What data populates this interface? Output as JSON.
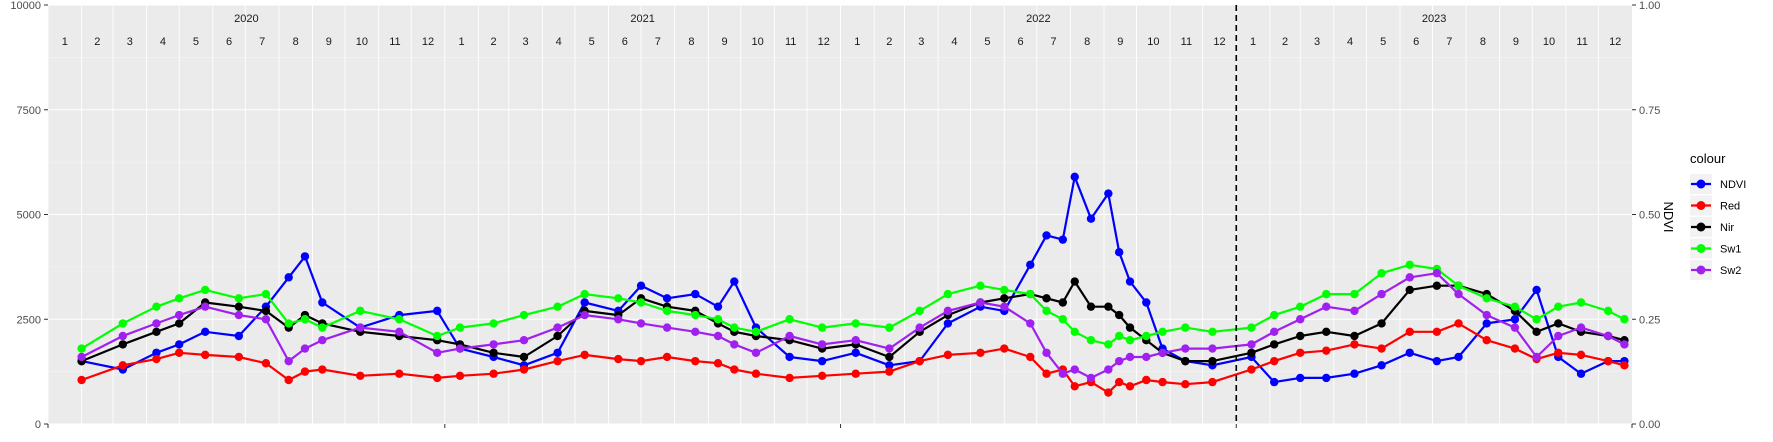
{
  "chart_data": {
    "type": "line",
    "x_axis": {
      "type": "date",
      "range": [
        "2020-01-01",
        "2024-01-01"
      ],
      "facet_labels": [
        "2020",
        "2021",
        "2022",
        "2023"
      ],
      "month_labels": [
        "1",
        "2",
        "3",
        "4",
        "5",
        "6",
        "7",
        "8",
        "9",
        "10",
        "11",
        "12"
      ]
    },
    "y_left": {
      "range": [
        0,
        10000
      ],
      "ticks": [
        0,
        2500,
        5000,
        7500,
        10000
      ],
      "labels": [
        "0",
        "2500",
        "5000",
        "7500",
        "10000"
      ]
    },
    "y_right": {
      "title": "NDVI",
      "range": [
        0,
        1
      ],
      "ticks": [
        0,
        0.25,
        0.5,
        0.75,
        1.0
      ],
      "labels": [
        "0.00",
        "0.25",
        "0.50",
        "0.75",
        "1.00"
      ]
    },
    "vline": {
      "x": "2023-01-01",
      "style": "dashed",
      "color": "#000000"
    },
    "grid": true,
    "panel_background": "#ebebeb",
    "legend": {
      "title": "colour",
      "position": "right"
    },
    "series": [
      {
        "name": "NDVI",
        "color": "#0000ff",
        "x": [
          "2020-02-01",
          "2020-03-10",
          "2020-04-10",
          "2020-05-01",
          "2020-05-25",
          "2020-06-25",
          "2020-07-20",
          "2020-08-10",
          "2020-08-25",
          "2020-09-10",
          "2020-10-15",
          "2020-11-20",
          "2020-12-25",
          "2021-01-15",
          "2021-02-15",
          "2021-03-15",
          "2021-04-15",
          "2021-05-10",
          "2021-06-10",
          "2021-07-01",
          "2021-07-25",
          "2021-08-20",
          "2021-09-10",
          "2021-09-25",
          "2021-10-15",
          "2021-11-15",
          "2021-12-15",
          "2022-01-15",
          "2022-02-15",
          "2022-03-15",
          "2022-04-10",
          "2022-05-10",
          "2022-06-01",
          "2022-06-25",
          "2022-07-10",
          "2022-07-25",
          "2022-08-05",
          "2022-08-20",
          "2022-09-05",
          "2022-09-15",
          "2022-09-25",
          "2022-10-10",
          "2022-10-25",
          "2022-11-15",
          "2022-12-10",
          "2023-01-15",
          "2023-02-05",
          "2023-03-01",
          "2023-03-25",
          "2023-04-20",
          "2023-05-15",
          "2023-06-10",
          "2023-07-05",
          "2023-07-25",
          "2023-08-20",
          "2023-09-15",
          "2023-10-05",
          "2023-10-25",
          "2023-11-15",
          "2023-12-10",
          "2023-12-25"
        ],
        "values": [
          0.15,
          0.13,
          0.17,
          0.19,
          0.22,
          0.21,
          0.28,
          0.35,
          0.4,
          0.29,
          0.23,
          0.26,
          0.27,
          0.18,
          0.16,
          0.14,
          0.17,
          0.29,
          0.27,
          0.33,
          0.3,
          0.31,
          0.28,
          0.34,
          0.23,
          0.16,
          0.15,
          0.17,
          0.14,
          0.15,
          0.24,
          0.28,
          0.27,
          0.38,
          0.45,
          0.44,
          0.59,
          0.49,
          0.55,
          0.41,
          0.34,
          0.29,
          0.18,
          0.15,
          0.14,
          0.16,
          0.1,
          0.11,
          0.11,
          0.12,
          0.14,
          0.17,
          0.15,
          0.16,
          0.24,
          0.25,
          0.32,
          0.16,
          0.12,
          0.15,
          0.15
        ]
      },
      {
        "name": "Red",
        "color": "#ff0000",
        "x": [
          "2020-02-01",
          "2020-03-10",
          "2020-04-10",
          "2020-05-01",
          "2020-05-25",
          "2020-06-25",
          "2020-07-20",
          "2020-08-10",
          "2020-08-25",
          "2020-09-10",
          "2020-10-15",
          "2020-11-20",
          "2020-12-25",
          "2021-01-15",
          "2021-02-15",
          "2021-03-15",
          "2021-04-15",
          "2021-05-10",
          "2021-06-10",
          "2021-07-01",
          "2021-07-25",
          "2021-08-20",
          "2021-09-10",
          "2021-09-25",
          "2021-10-15",
          "2021-11-15",
          "2021-12-15",
          "2022-01-15",
          "2022-02-15",
          "2022-03-15",
          "2022-04-10",
          "2022-05-10",
          "2022-06-01",
          "2022-06-25",
          "2022-07-10",
          "2022-07-25",
          "2022-08-05",
          "2022-08-20",
          "2022-09-05",
          "2022-09-15",
          "2022-09-25",
          "2022-10-10",
          "2022-10-25",
          "2022-11-15",
          "2022-12-10",
          "2023-01-15",
          "2023-02-05",
          "2023-03-01",
          "2023-03-25",
          "2023-04-20",
          "2023-05-15",
          "2023-06-10",
          "2023-07-05",
          "2023-07-25",
          "2023-08-20",
          "2023-09-15",
          "2023-10-05",
          "2023-10-25",
          "2023-11-15",
          "2023-12-10",
          "2023-12-25"
        ],
        "values": [
          1050,
          1400,
          1550,
          1700,
          1650,
          1600,
          1450,
          1050,
          1250,
          1300,
          1150,
          1200,
          1100,
          1150,
          1200,
          1300,
          1500,
          1650,
          1550,
          1500,
          1600,
          1500,
          1450,
          1300,
          1200,
          1100,
          1150,
          1200,
          1250,
          1500,
          1650,
          1700,
          1800,
          1600,
          1200,
          1300,
          900,
          1000,
          750,
          1000,
          900,
          1050,
          1000,
          950,
          1000,
          1300,
          1500,
          1700,
          1750,
          1900,
          1800,
          2200,
          2200,
          2400,
          2000,
          1800,
          1550,
          1700,
          1650,
          1500,
          1400
        ]
      },
      {
        "name": "Nir",
        "color": "#000000",
        "x": [
          "2020-02-01",
          "2020-03-10",
          "2020-04-10",
          "2020-05-01",
          "2020-05-25",
          "2020-06-25",
          "2020-07-20",
          "2020-08-10",
          "2020-08-25",
          "2020-09-10",
          "2020-10-15",
          "2020-11-20",
          "2020-12-25",
          "2021-01-15",
          "2021-02-15",
          "2021-03-15",
          "2021-04-15",
          "2021-05-10",
          "2021-06-10",
          "2021-07-01",
          "2021-07-25",
          "2021-08-20",
          "2021-09-10",
          "2021-09-25",
          "2021-10-15",
          "2021-11-15",
          "2021-12-15",
          "2022-01-15",
          "2022-02-15",
          "2022-03-15",
          "2022-04-10",
          "2022-05-10",
          "2022-06-01",
          "2022-06-25",
          "2022-07-10",
          "2022-07-25",
          "2022-08-05",
          "2022-08-20",
          "2022-09-05",
          "2022-09-15",
          "2022-09-25",
          "2022-10-10",
          "2022-10-25",
          "2022-11-15",
          "2022-12-10",
          "2023-01-15",
          "2023-02-05",
          "2023-03-01",
          "2023-03-25",
          "2023-04-20",
          "2023-05-15",
          "2023-06-10",
          "2023-07-05",
          "2023-07-25",
          "2023-08-20",
          "2023-09-15",
          "2023-10-05",
          "2023-10-25",
          "2023-11-15",
          "2023-12-10",
          "2023-12-25"
        ],
        "values": [
          1500,
          1900,
          2200,
          2400,
          2900,
          2800,
          2700,
          2300,
          2600,
          2400,
          2200,
          2100,
          2000,
          1900,
          1700,
          1600,
          2100,
          2700,
          2600,
          3000,
          2800,
          2700,
          2400,
          2200,
          2100,
          2000,
          1800,
          1900,
          1600,
          2200,
          2600,
          2900,
          3000,
          3100,
          3000,
          2900,
          3400,
          2800,
          2800,
          2600,
          2300,
          2000,
          1700,
          1500,
          1500,
          1700,
          1900,
          2100,
          2200,
          2100,
          2400,
          3200,
          3300,
          3300,
          3100,
          2700,
          2200,
          2400,
          2200,
          2100,
          2000
        ]
      },
      {
        "name": "Sw1",
        "color": "#00ff00",
        "x": [
          "2020-02-01",
          "2020-03-10",
          "2020-04-10",
          "2020-05-01",
          "2020-05-25",
          "2020-06-25",
          "2020-07-20",
          "2020-08-10",
          "2020-08-25",
          "2020-09-10",
          "2020-10-15",
          "2020-11-20",
          "2020-12-25",
          "2021-01-15",
          "2021-02-15",
          "2021-03-15",
          "2021-04-15",
          "2021-05-10",
          "2021-06-10",
          "2021-07-01",
          "2021-07-25",
          "2021-08-20",
          "2021-09-10",
          "2021-09-25",
          "2021-10-15",
          "2021-11-15",
          "2021-12-15",
          "2022-01-15",
          "2022-02-15",
          "2022-03-15",
          "2022-04-10",
          "2022-05-10",
          "2022-06-01",
          "2022-06-25",
          "2022-07-10",
          "2022-07-25",
          "2022-08-05",
          "2022-08-20",
          "2022-09-05",
          "2022-09-15",
          "2022-09-25",
          "2022-10-10",
          "2022-10-25",
          "2022-11-15",
          "2022-12-10",
          "2023-01-15",
          "2023-02-05",
          "2023-03-01",
          "2023-03-25",
          "2023-04-20",
          "2023-05-15",
          "2023-06-10",
          "2023-07-05",
          "2023-07-25",
          "2023-08-20",
          "2023-09-15",
          "2023-10-05",
          "2023-10-25",
          "2023-11-15",
          "2023-12-10",
          "2023-12-25"
        ],
        "values": [
          1800,
          2400,
          2800,
          3000,
          3200,
          3000,
          3100,
          2400,
          2500,
          2300,
          2700,
          2500,
          2100,
          2300,
          2400,
          2600,
          2800,
          3100,
          3000,
          2900,
          2700,
          2600,
          2500,
          2300,
          2200,
          2500,
          2300,
          2400,
          2300,
          2700,
          3100,
          3300,
          3200,
          3100,
          2700,
          2500,
          2200,
          2000,
          1900,
          2100,
          2000,
          2100,
          2200,
          2300,
          2200,
          2300,
          2600,
          2800,
          3100,
          3100,
          3600,
          3800,
          3700,
          3300,
          3000,
          2800,
          2500,
          2800,
          2900,
          2700,
          2500
        ]
      },
      {
        "name": "Sw2",
        "color": "#a020f0",
        "x": [
          "2020-02-01",
          "2020-03-10",
          "2020-04-10",
          "2020-05-01",
          "2020-05-25",
          "2020-06-25",
          "2020-07-20",
          "2020-08-10",
          "2020-08-25",
          "2020-09-10",
          "2020-10-15",
          "2020-11-20",
          "2020-12-25",
          "2021-01-15",
          "2021-02-15",
          "2021-03-15",
          "2021-04-15",
          "2021-05-10",
          "2021-06-10",
          "2021-07-01",
          "2021-07-25",
          "2021-08-20",
          "2021-09-10",
          "2021-09-25",
          "2021-10-15",
          "2021-11-15",
          "2021-12-15",
          "2022-01-15",
          "2022-02-15",
          "2022-03-15",
          "2022-04-10",
          "2022-05-10",
          "2022-06-01",
          "2022-06-25",
          "2022-07-10",
          "2022-07-25",
          "2022-08-05",
          "2022-08-20",
          "2022-09-05",
          "2022-09-15",
          "2022-09-25",
          "2022-10-10",
          "2022-10-25",
          "2022-11-15",
          "2022-12-10",
          "2023-01-15",
          "2023-02-05",
          "2023-03-01",
          "2023-03-25",
          "2023-04-20",
          "2023-05-15",
          "2023-06-10",
          "2023-07-05",
          "2023-07-25",
          "2023-08-20",
          "2023-09-15",
          "2023-10-05",
          "2023-10-25",
          "2023-11-15",
          "2023-12-10",
          "2023-12-25"
        ],
        "values": [
          1600,
          2100,
          2400,
          2600,
          2800,
          2600,
          2500,
          1500,
          1800,
          2000,
          2300,
          2200,
          1700,
          1800,
          1900,
          2000,
          2300,
          2600,
          2500,
          2400,
          2300,
          2200,
          2100,
          1900,
          1700,
          2100,
          1900,
          2000,
          1800,
          2300,
          2700,
          2900,
          2800,
          2400,
          1700,
          1200,
          1300,
          1100,
          1300,
          1500,
          1600,
          1600,
          1700,
          1800,
          1800,
          1900,
          2200,
          2500,
          2800,
          2700,
          3100,
          3500,
          3600,
          3100,
          2600,
          2300,
          1600,
          2100,
          2300,
          2100,
          1900
        ]
      }
    ]
  }
}
